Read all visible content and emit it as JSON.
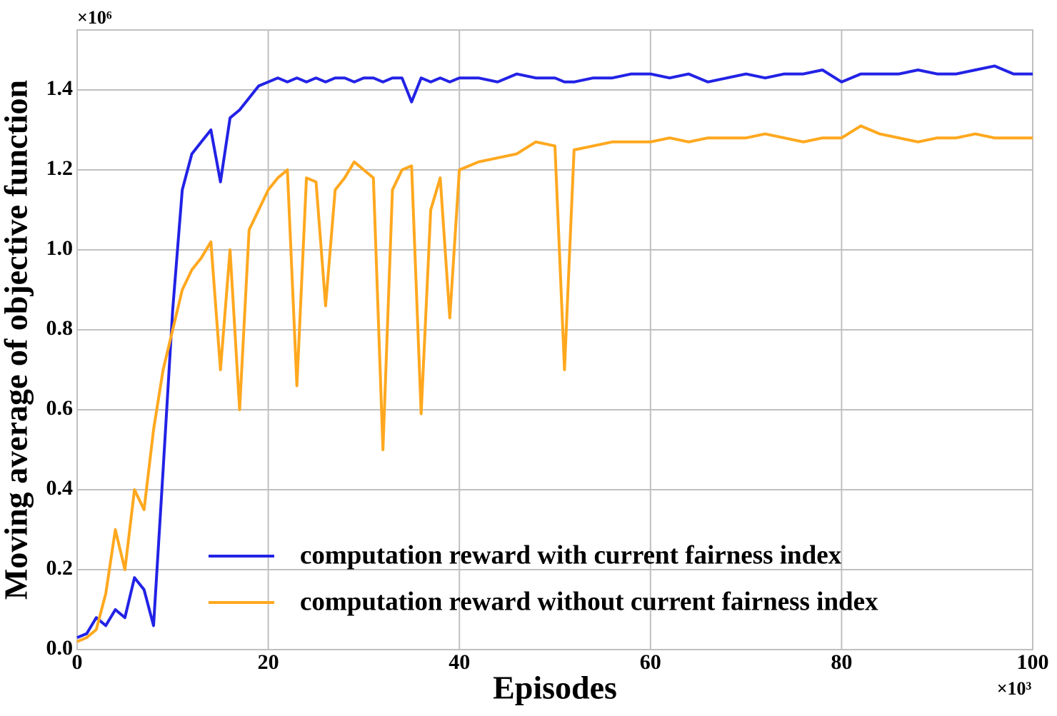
{
  "chart_data": {
    "type": "line",
    "x_label": "Episodes",
    "y_label": "Moving average of objective function",
    "x_offset_label": "×10³",
    "y_offset_label": "×10⁶",
    "x": [
      0,
      1,
      2,
      3,
      4,
      5,
      6,
      7,
      8,
      9,
      10,
      11,
      12,
      13,
      14,
      15,
      16,
      17,
      18,
      19,
      20,
      21,
      22,
      23,
      24,
      25,
      26,
      27,
      28,
      29,
      30,
      31,
      32,
      33,
      34,
      35,
      36,
      37,
      38,
      39,
      40,
      42,
      44,
      46,
      48,
      50,
      51,
      52,
      54,
      56,
      58,
      60,
      62,
      64,
      66,
      68,
      70,
      72,
      74,
      76,
      78,
      80,
      82,
      84,
      86,
      88,
      90,
      92,
      94,
      96,
      98,
      100
    ],
    "series": [
      {
        "name": "computation reward with current fairness index",
        "color": "#2222e6",
        "values": [
          0.03,
          0.04,
          0.08,
          0.06,
          0.1,
          0.08,
          0.18,
          0.15,
          0.06,
          0.45,
          0.85,
          1.15,
          1.24,
          1.27,
          1.3,
          1.17,
          1.33,
          1.35,
          1.38,
          1.41,
          1.42,
          1.43,
          1.42,
          1.43,
          1.42,
          1.43,
          1.42,
          1.43,
          1.43,
          1.42,
          1.43,
          1.43,
          1.42,
          1.43,
          1.43,
          1.37,
          1.43,
          1.42,
          1.43,
          1.42,
          1.43,
          1.43,
          1.42,
          1.44,
          1.43,
          1.43,
          1.42,
          1.42,
          1.43,
          1.43,
          1.44,
          1.44,
          1.43,
          1.44,
          1.42,
          1.43,
          1.44,
          1.43,
          1.44,
          1.44,
          1.45,
          1.42,
          1.44,
          1.44,
          1.44,
          1.45,
          1.44,
          1.44,
          1.45,
          1.46,
          1.44,
          1.44
        ]
      },
      {
        "name": "computation reward without current fairness index",
        "color": "#ffa81f",
        "values": [
          0.02,
          0.03,
          0.05,
          0.14,
          0.3,
          0.2,
          0.4,
          0.35,
          0.55,
          0.7,
          0.8,
          0.9,
          0.95,
          0.98,
          1.02,
          0.7,
          1.0,
          0.6,
          1.05,
          1.1,
          1.15,
          1.18,
          1.2,
          0.66,
          1.18,
          1.17,
          0.86,
          1.15,
          1.18,
          1.22,
          1.2,
          1.18,
          0.5,
          1.15,
          1.2,
          1.21,
          0.59,
          1.1,
          1.18,
          0.83,
          1.2,
          1.22,
          1.23,
          1.24,
          1.27,
          1.26,
          0.7,
          1.25,
          1.26,
          1.27,
          1.27,
          1.27,
          1.28,
          1.27,
          1.28,
          1.28,
          1.28,
          1.29,
          1.28,
          1.27,
          1.28,
          1.28,
          1.31,
          1.29,
          1.28,
          1.27,
          1.28,
          1.28,
          1.29,
          1.28,
          1.28,
          1.28
        ]
      }
    ],
    "xlim": [
      0,
      100
    ],
    "xticks": [
      0,
      20,
      40,
      60,
      80,
      100
    ],
    "ylim": [
      0,
      1.55
    ],
    "yticks": [
      {
        "value": 0,
        "label": "0.0"
      },
      0.2,
      0.4,
      0.6,
      0.8,
      {
        "value": 1,
        "label": "1.0"
      },
      1.2,
      1.4
    ],
    "grid": true,
    "legend": "lower right"
  }
}
